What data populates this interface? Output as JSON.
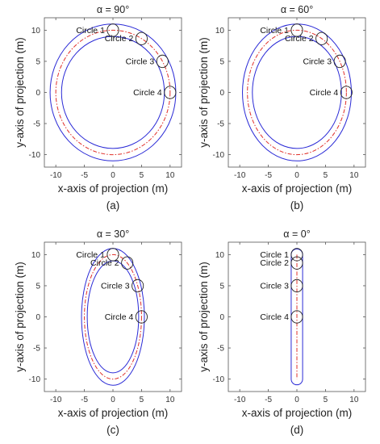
{
  "chart_data": [
    {
      "type": "line",
      "title": "α = 90°",
      "alpha_deg": 90,
      "caption": "(a)",
      "xlabel": "x-axis of projection (m)",
      "ylabel": "y-axis of projection (m)",
      "xlim": [
        -12,
        12
      ],
      "ylim": [
        -12,
        12
      ],
      "xticks": [
        -10,
        -5,
        0,
        5,
        10
      ],
      "yticks": [
        10,
        5,
        0,
        -5,
        -10
      ],
      "grid": false,
      "colors": {
        "boundary": "#2a2ad6",
        "centerline": "#e0302a",
        "circle": "#222222"
      },
      "circles": [
        {
          "label": "Circle 1",
          "x": 0,
          "y": 10
        },
        {
          "label": "Circle 2",
          "x": 5,
          "y": 8.66
        },
        {
          "label": "Circle 3",
          "x": 8.66,
          "y": 5
        },
        {
          "label": "Circle 4",
          "x": 10,
          "y": 0
        }
      ]
    },
    {
      "type": "line",
      "title": "α = 60°",
      "alpha_deg": 60,
      "caption": "(b)",
      "xlabel": "x-axis of projection (m)",
      "ylabel": "y-axis of projection (m)",
      "xlim": [
        -12,
        12
      ],
      "ylim": [
        -12,
        12
      ],
      "xticks": [
        -10,
        -5,
        0,
        5,
        10
      ],
      "yticks": [
        10,
        5,
        0,
        -5,
        -10
      ],
      "grid": false,
      "colors": {
        "boundary": "#2a2ad6",
        "centerline": "#e0302a",
        "circle": "#222222"
      },
      "circles": [
        {
          "label": "Circle 1",
          "x": 0,
          "y": 10
        },
        {
          "label": "Circle 2",
          "x": 4.33,
          "y": 8.66
        },
        {
          "label": "Circle 3",
          "x": 7.5,
          "y": 5
        },
        {
          "label": "Circle 4",
          "x": 8.66,
          "y": 0
        }
      ]
    },
    {
      "type": "line",
      "title": "α = 30°",
      "alpha_deg": 30,
      "caption": "(c)",
      "xlabel": "x-axis of projection (m)",
      "ylabel": "y-axis of projection (m)",
      "xlim": [
        -12,
        12
      ],
      "ylim": [
        -12,
        12
      ],
      "xticks": [
        -10,
        -5,
        0,
        5,
        10
      ],
      "yticks": [
        10,
        5,
        0,
        -5,
        -10
      ],
      "grid": false,
      "colors": {
        "boundary": "#2a2ad6",
        "centerline": "#e0302a",
        "circle": "#222222"
      },
      "circles": [
        {
          "label": "Circle 1",
          "x": 0,
          "y": 10
        },
        {
          "label": "Circle 2",
          "x": 2.5,
          "y": 8.66
        },
        {
          "label": "Circle 3",
          "x": 4.33,
          "y": 5
        },
        {
          "label": "Circle 4",
          "x": 5,
          "y": 0
        }
      ]
    },
    {
      "type": "line",
      "title": "α = 0°",
      "alpha_deg": 0,
      "caption": "(d)",
      "xlabel": "x-axis of projection (m)",
      "ylabel": "y-axis of projection (m)",
      "xlim": [
        -12,
        12
      ],
      "ylim": [
        -12,
        12
      ],
      "xticks": [
        -10,
        -5,
        0,
        5,
        10
      ],
      "yticks": [
        10,
        5,
        0,
        -5,
        -10
      ],
      "grid": false,
      "colors": {
        "boundary": "#2a2ad6",
        "centerline": "#e0302a",
        "circle": "#222222"
      },
      "circles": [
        {
          "label": "Circle 1",
          "x": 0,
          "y": 10
        },
        {
          "label": "Circle 2",
          "x": 0,
          "y": 8.66
        },
        {
          "label": "Circle 3",
          "x": 0,
          "y": 5
        },
        {
          "label": "Circle 4",
          "x": 0,
          "y": 0
        }
      ]
    }
  ]
}
